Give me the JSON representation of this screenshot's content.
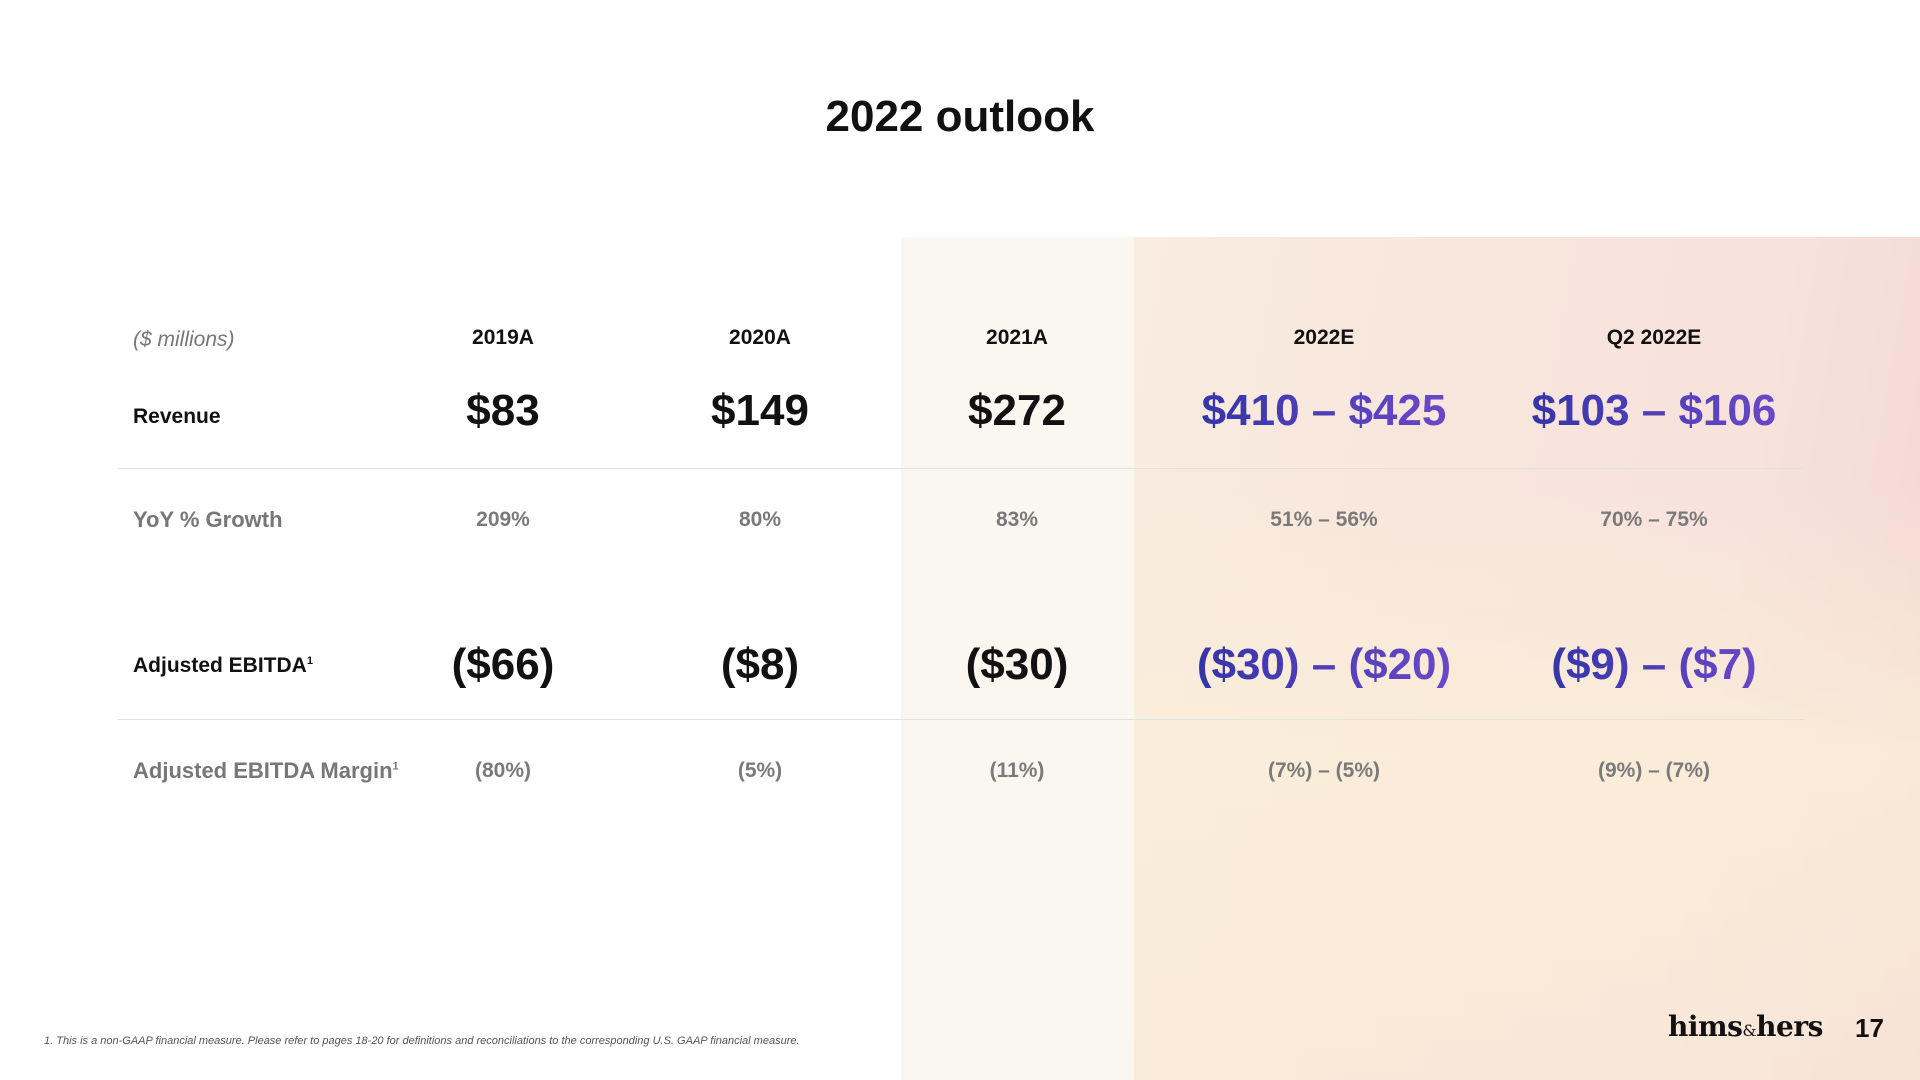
{
  "slide": {
    "title": "2022 outlook",
    "units_label": "($ millions)",
    "columns": [
      "2019A",
      "2020A",
      "2021A",
      "2022E",
      "Q2 2022E"
    ],
    "rows": {
      "revenue": {
        "label": "Revenue",
        "values": [
          "$83",
          "$149",
          "$272",
          "$410 – $425",
          "$103 – $106"
        ]
      },
      "yoy_growth": {
        "label": "YoY % Growth",
        "values": [
          "209%",
          "80%",
          "83%",
          "51% – 56%",
          "70% – 75%"
        ]
      },
      "adjusted_ebitda": {
        "label": "Adjusted EBITDA",
        "footnote_ref": "1",
        "values": [
          "($66)",
          "($8)",
          "($30)",
          "($30) – ($20)",
          "($9) – ($7)"
        ]
      },
      "adjusted_ebitda_margin": {
        "label": "Adjusted EBITDA Margin",
        "footnote_ref": "1",
        "values": [
          "(80%)",
          "(5%)",
          "(11%)",
          "(7%) – (5%)",
          "(9%) – (7%)"
        ]
      }
    },
    "footnote": "1. This is a non-GAAP financial measure. Please refer to pages 18-20 for definitions and reconciliations to the corresponding U.S. GAAP financial measure.",
    "logo": {
      "part1": "hims",
      "amp": "&",
      "part2": "hers"
    },
    "page_number": "17",
    "colors": {
      "accent_start": "#3535a8",
      "accent_end": "#6a48c8",
      "muted": "#7a7a7a"
    }
  }
}
